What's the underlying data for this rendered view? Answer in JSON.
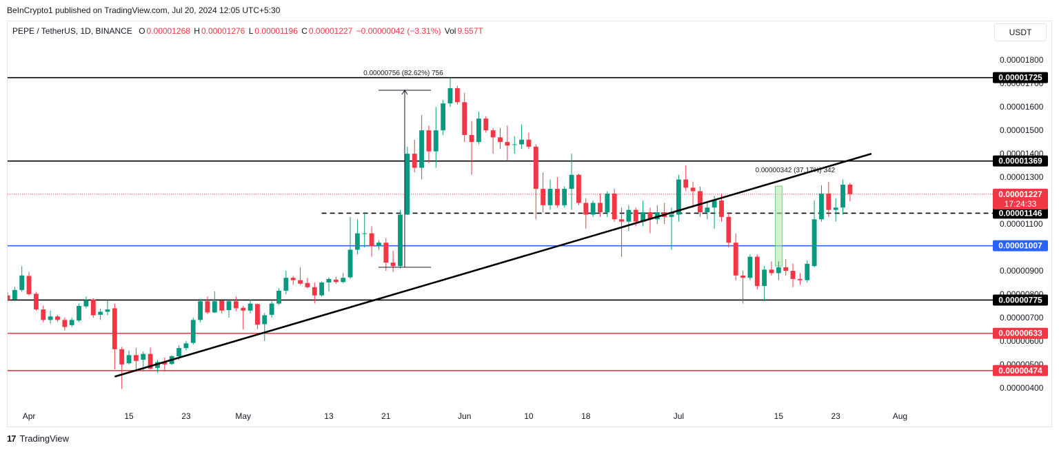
{
  "header": {
    "publisher": "BeInCrypto1 published on TradingView.com, Jul 20, 2024 12:05 UTC+5:30"
  },
  "legend": {
    "symbol": "PEPE / TetherUS, 1D, BINANCE",
    "open_label": "O",
    "open": "0.00001268",
    "high_label": "H",
    "high": "0.00001276",
    "low_label": "L",
    "low": "0.00001196",
    "close_label": "C",
    "close": "0.00001227",
    "change": "−0.00000042 (−3.31%)",
    "vol_label": "Vol",
    "vol": "9.557T"
  },
  "currency_button": "USDT",
  "footer": {
    "brand": "TradingView",
    "logo": "17"
  },
  "colors": {
    "up": "#089981",
    "down": "#f23645",
    "support_blue": "#2962ff",
    "support_red": "#f23645",
    "level_black": "#000000"
  },
  "chart_data": {
    "type": "candlestick",
    "symbol": "PEPE/USDT",
    "timeframe": "1D",
    "y_ticks": [
      "0.00001800",
      "0.00001700",
      "0.00001600",
      "0.00001500",
      "0.00001400",
      "0.00001300",
      "0.00001200",
      "0.00001100",
      "0.00001000",
      "0.00000900",
      "0.00000800",
      "0.00000700",
      "0.00000600",
      "0.00000500",
      "0.00000400"
    ],
    "x_ticks": [
      {
        "label": "Apr",
        "date": "2024-04-01"
      },
      {
        "label": "15",
        "date": "2024-04-15"
      },
      {
        "label": "23",
        "date": "2024-04-23"
      },
      {
        "label": "May",
        "date": "2024-05-01"
      },
      {
        "label": "13",
        "date": "2024-05-13"
      },
      {
        "label": "21",
        "date": "2024-05-21"
      },
      {
        "label": "Jun",
        "date": "2024-06-01"
      },
      {
        "label": "10",
        "date": "2024-06-10"
      },
      {
        "label": "18",
        "date": "2024-06-18"
      },
      {
        "label": "Jul",
        "date": "2024-07-01"
      },
      {
        "label": "15",
        "date": "2024-07-15"
      },
      {
        "label": "23",
        "date": "2024-07-23"
      },
      {
        "label": "Aug",
        "date": "2024-08-01"
      }
    ],
    "y_range": [
      3.35e-06,
      1.88e-05
    ],
    "x_range": [
      "2024-03-29",
      "2024-08-14"
    ],
    "levels": [
      {
        "value": 1.725e-05,
        "label": "0.00001725",
        "style": "solid",
        "color": "#000000"
      },
      {
        "value": 1.369e-05,
        "label": "0.00001369",
        "style": "solid",
        "color": "#000000"
      },
      {
        "value": 1.146e-05,
        "label": "0.00001146",
        "style": "dashed",
        "color": "#000000",
        "from": "2024-05-12"
      },
      {
        "value": 1.007e-05,
        "label": "0.00001007",
        "style": "solid",
        "color": "#2962ff"
      },
      {
        "value": 7.75e-06,
        "label": "0.00000775",
        "style": "solid",
        "color": "#000000"
      },
      {
        "value": 6.33e-06,
        "label": "0.00000633",
        "style": "solid",
        "color": "#f23645"
      },
      {
        "value": 4.74e-06,
        "label": "0.00000474",
        "style": "solid",
        "color": "#f23645"
      }
    ],
    "current_price": {
      "value": 1.227e-05,
      "label": "0.00001227",
      "countdown": "17:24:33"
    },
    "trendline": {
      "from": {
        "date": "2024-04-13",
        "value": 4.48e-06
      },
      "to": {
        "date": "2024-07-28",
        "value": 1.4e-05
      }
    },
    "measures": [
      {
        "label": "0.00000756 (82.62%) 756",
        "from": {
          "date": "2024-05-20",
          "value": 9.15e-06
        },
        "to": {
          "date": "2024-05-23",
          "value": 1.671e-05
        },
        "shaded": false
      },
      {
        "label": "0.00000342 (37.17%) 342",
        "from": {
          "date": "2024-07-15",
          "value": 9.2e-06
        },
        "to": {
          "date": "2024-07-15",
          "value": 1.262e-05
        },
        "shaded": true
      }
    ],
    "candles": [
      {
        "d": "2024-03-29",
        "o": 7.95e-06,
        "h": 8.1e-06,
        "l": 7.7e-06,
        "c": 7.75e-06
      },
      {
        "d": "2024-03-30",
        "o": 7.78e-06,
        "h": 8.32e-06,
        "l": 7.7e-06,
        "c": 8.18e-06
      },
      {
        "d": "2024-03-31",
        "o": 8.18e-06,
        "h": 9.2e-06,
        "l": 8.1e-06,
        "c": 8.8e-06
      },
      {
        "d": "2024-04-01",
        "o": 8.78e-06,
        "h": 8.95e-06,
        "l": 7.95e-06,
        "c": 8e-06
      },
      {
        "d": "2024-04-02",
        "o": 8.02e-06,
        "h": 8.1e-06,
        "l": 7.3e-06,
        "c": 7.35e-06
      },
      {
        "d": "2024-04-03",
        "o": 7.35e-06,
        "h": 7.52e-06,
        "l": 6.8e-06,
        "c": 6.9e-06
      },
      {
        "d": "2024-04-04",
        "o": 6.9e-06,
        "h": 7.3e-06,
        "l": 6.75e-06,
        "c": 7.05e-06
      },
      {
        "d": "2024-04-05",
        "o": 7.05e-06,
        "h": 7.12e-06,
        "l": 6.82e-06,
        "c": 6.9e-06
      },
      {
        "d": "2024-04-06",
        "o": 6.9e-06,
        "h": 7e-06,
        "l": 6.45e-06,
        "c": 6.6e-06
      },
      {
        "d": "2024-04-07",
        "o": 6.68e-06,
        "h": 7e-06,
        "l": 6.6e-06,
        "c": 6.9e-06
      },
      {
        "d": "2024-04-08",
        "o": 6.88e-06,
        "h": 7.6e-06,
        "l": 6.82e-06,
        "c": 7.5e-06
      },
      {
        "d": "2024-04-09",
        "o": 7.48e-06,
        "h": 7.9e-06,
        "l": 7.4e-06,
        "c": 7.75e-06
      },
      {
        "d": "2024-04-10",
        "o": 7.78e-06,
        "h": 7.82e-06,
        "l": 7e-06,
        "c": 7.1e-06
      },
      {
        "d": "2024-04-11",
        "o": 7.12e-06,
        "h": 7.38e-06,
        "l": 6.9e-06,
        "c": 7.25e-06
      },
      {
        "d": "2024-04-12",
        "o": 7.25e-06,
        "h": 7.75e-06,
        "l": 7.1e-06,
        "c": 7.35e-06
      },
      {
        "d": "2024-04-13",
        "o": 7.4e-06,
        "h": 7.6e-06,
        "l": 4.8e-06,
        "c": 5.65e-06
      },
      {
        "d": "2024-04-14",
        "o": 5.65e-06,
        "h": 5.75e-06,
        "l": 3.95e-06,
        "c": 5e-06
      },
      {
        "d": "2024-04-15",
        "o": 5.05e-06,
        "h": 5.6e-06,
        "l": 5e-06,
        "c": 5.4e-06
      },
      {
        "d": "2024-04-16",
        "o": 5.4e-06,
        "h": 5.7e-06,
        "l": 4.68e-06,
        "c": 5.15e-06
      },
      {
        "d": "2024-04-17",
        "o": 5.2e-06,
        "h": 5.55e-06,
        "l": 4.7e-06,
        "c": 5.45e-06
      },
      {
        "d": "2024-04-18",
        "o": 5.45e-06,
        "h": 5.72e-06,
        "l": 4.78e-06,
        "c": 4.82e-06
      },
      {
        "d": "2024-04-19",
        "o": 4.85e-06,
        "h": 5.2e-06,
        "l": 4.65e-06,
        "c": 5.1e-06
      },
      {
        "d": "2024-04-20",
        "o": 5.12e-06,
        "h": 5.3e-06,
        "l": 4.7e-06,
        "c": 5e-06
      },
      {
        "d": "2024-04-21",
        "o": 5.02e-06,
        "h": 5.4e-06,
        "l": 4.98e-06,
        "c": 5.35e-06
      },
      {
        "d": "2024-04-22",
        "o": 5.35e-06,
        "h": 5.82e-06,
        "l": 5.2e-06,
        "c": 5.7e-06
      },
      {
        "d": "2024-04-23",
        "o": 5.7e-06,
        "h": 6e-06,
        "l": 5.6e-06,
        "c": 5.9e-06
      },
      {
        "d": "2024-04-24",
        "o": 5.92e-06,
        "h": 7e-06,
        "l": 5.85e-06,
        "c": 6.9e-06
      },
      {
        "d": "2024-04-25",
        "o": 6.9e-06,
        "h": 7.8e-06,
        "l": 6.8e-06,
        "c": 7.7e-06
      },
      {
        "d": "2024-04-26",
        "o": 7.7e-06,
        "h": 7.9e-06,
        "l": 7.15e-06,
        "c": 7.22e-06
      },
      {
        "d": "2024-04-27",
        "o": 7.22e-06,
        "h": 8.12e-06,
        "l": 7.2e-06,
        "c": 7.7e-06
      },
      {
        "d": "2024-04-28",
        "o": 7.72e-06,
        "h": 7.8e-06,
        "l": 7.18e-06,
        "c": 7.3e-06
      },
      {
        "d": "2024-04-29",
        "o": 7.32e-06,
        "h": 7.75e-06,
        "l": 7e-06,
        "c": 7.7e-06
      },
      {
        "d": "2024-04-30",
        "o": 7.7e-06,
        "h": 7.9e-06,
        "l": 7.28e-06,
        "c": 7.4e-06
      },
      {
        "d": "2024-05-01",
        "o": 7.42e-06,
        "h": 7.5e-06,
        "l": 6.5e-06,
        "c": 7.3e-06
      },
      {
        "d": "2024-05-02",
        "o": 7.3e-06,
        "h": 7.78e-06,
        "l": 7.18e-06,
        "c": 7.6e-06
      },
      {
        "d": "2024-05-03",
        "o": 7.58e-06,
        "h": 7.6e-06,
        "l": 6.5e-06,
        "c": 6.7e-06
      },
      {
        "d": "2024-05-04",
        "o": 6.72e-06,
        "h": 7.2e-06,
        "l": 6e-06,
        "c": 7.1e-06
      },
      {
        "d": "2024-05-05",
        "o": 7.12e-06,
        "h": 7.7e-06,
        "l": 7e-06,
        "c": 7.6e-06
      },
      {
        "d": "2024-05-06",
        "o": 7.6e-06,
        "h": 8.25e-06,
        "l": 7.55e-06,
        "c": 8.15e-06
      },
      {
        "d": "2024-05-07",
        "o": 8.15e-06,
        "h": 9e-06,
        "l": 8e-06,
        "c": 8.7e-06
      },
      {
        "d": "2024-05-08",
        "o": 8.7e-06,
        "h": 8.78e-06,
        "l": 8.4e-06,
        "c": 8.6e-06
      },
      {
        "d": "2024-05-09",
        "o": 8.6e-06,
        "h": 9.15e-06,
        "l": 8.4e-06,
        "c": 8.45e-06
      },
      {
        "d": "2024-05-10",
        "o": 8.48e-06,
        "h": 8.7e-06,
        "l": 8.25e-06,
        "c": 8.3e-06
      },
      {
        "d": "2024-05-11",
        "o": 8.3e-06,
        "h": 8.5e-06,
        "l": 7.6e-06,
        "c": 7.95e-06
      },
      {
        "d": "2024-05-12",
        "o": 7.95e-06,
        "h": 8.55e-06,
        "l": 7.9e-06,
        "c": 8.5e-06
      },
      {
        "d": "2024-05-13",
        "o": 8.5e-06,
        "h": 8.72e-06,
        "l": 8.12e-06,
        "c": 8.65e-06
      },
      {
        "d": "2024-05-14",
        "o": 8.62e-06,
        "h": 8.75e-06,
        "l": 8.45e-06,
        "c": 8.52e-06
      },
      {
        "d": "2024-05-15",
        "o": 8.52e-06,
        "h": 8.9e-06,
        "l": 8.48e-06,
        "c": 8.7e-06
      },
      {
        "d": "2024-05-16",
        "o": 8.72e-06,
        "h": 1.13e-05,
        "l": 8.65e-06,
        "c": 9.9e-06
      },
      {
        "d": "2024-05-17",
        "o": 9.9e-06,
        "h": 1.12e-05,
        "l": 9.7e-06,
        "c": 1.06e-05
      },
      {
        "d": "2024-05-18",
        "o": 1.06e-05,
        "h": 1.15e-05,
        "l": 1e-05,
        "c": 1.06e-05
      },
      {
        "d": "2024-05-19",
        "o": 1.06e-05,
        "h": 1.09e-05,
        "l": 9.6e-06,
        "c": 1.005e-05
      },
      {
        "d": "2024-05-20",
        "o": 1.005e-05,
        "h": 1.03e-05,
        "l": 9.9e-06,
        "c": 1.02e-05
      },
      {
        "d": "2024-05-21",
        "o": 1.02e-05,
        "h": 1.04e-05,
        "l": 9e-06,
        "c": 9.35e-06
      },
      {
        "d": "2024-05-22",
        "o": 9.35e-06,
        "h": 9.85e-06,
        "l": 8.95e-06,
        "c": 9.2e-06
      },
      {
        "d": "2024-05-23",
        "o": 9.2e-06,
        "h": 1.16e-05,
        "l": 9.1e-06,
        "c": 1.14e-05
      },
      {
        "d": "2024-05-24",
        "o": 1.14e-05,
        "h": 1.43e-05,
        "l": 1.138e-05,
        "c": 1.4e-05
      },
      {
        "d": "2024-05-25",
        "o": 1.4e-05,
        "h": 1.46e-05,
        "l": 1.32e-05,
        "c": 1.34e-05
      },
      {
        "d": "2024-05-26",
        "o": 1.34e-05,
        "h": 1.565e-05,
        "l": 1.29e-05,
        "c": 1.5e-05
      },
      {
        "d": "2024-05-27",
        "o": 1.5e-05,
        "h": 1.52e-05,
        "l": 1.36e-05,
        "c": 1.41e-05
      },
      {
        "d": "2024-05-28",
        "o": 1.41e-05,
        "h": 1.6e-05,
        "l": 1.34e-05,
        "c": 1.5e-05
      },
      {
        "d": "2024-05-29",
        "o": 1.5e-05,
        "h": 1.63e-05,
        "l": 1.48e-05,
        "c": 1.615e-05
      },
      {
        "d": "2024-05-30",
        "o": 1.615e-05,
        "h": 1.725e-05,
        "l": 1.6e-05,
        "c": 1.68e-05
      },
      {
        "d": "2024-05-31",
        "o": 1.68e-05,
        "h": 1.69e-05,
        "l": 1.61e-05,
        "c": 1.62e-05
      },
      {
        "d": "2024-06-01",
        "o": 1.62e-05,
        "h": 1.66e-05,
        "l": 1.45e-05,
        "c": 1.48e-05
      },
      {
        "d": "2024-06-02",
        "o": 1.48e-05,
        "h": 1.54e-05,
        "l": 1.31e-05,
        "c": 1.45e-05
      },
      {
        "d": "2024-06-03",
        "o": 1.45e-05,
        "h": 1.58e-05,
        "l": 1.44e-05,
        "c": 1.55e-05
      },
      {
        "d": "2024-06-04",
        "o": 1.55e-05,
        "h": 1.56e-05,
        "l": 1.49e-05,
        "c": 1.5e-05
      },
      {
        "d": "2024-06-05",
        "o": 1.5e-05,
        "h": 1.51e-05,
        "l": 1.4e-05,
        "c": 1.47e-05
      },
      {
        "d": "2024-06-06",
        "o": 1.47e-05,
        "h": 1.51e-05,
        "l": 1.42e-05,
        "c": 1.45e-05
      },
      {
        "d": "2024-06-07",
        "o": 1.45e-05,
        "h": 1.52e-05,
        "l": 1.37e-05,
        "c": 1.435e-05
      },
      {
        "d": "2024-06-08",
        "o": 1.438e-05,
        "h": 1.475e-05,
        "l": 1.4e-05,
        "c": 1.44e-05
      },
      {
        "d": "2024-06-09",
        "o": 1.44e-05,
        "h": 1.525e-05,
        "l": 1.42e-05,
        "c": 1.46e-05
      },
      {
        "d": "2024-06-10",
        "o": 1.46e-05,
        "h": 1.49e-05,
        "l": 1.42e-05,
        "c": 1.43e-05
      },
      {
        "d": "2024-06-11",
        "o": 1.43e-05,
        "h": 1.44e-05,
        "l": 1.12e-05,
        "c": 1.25e-05
      },
      {
        "d": "2024-06-12",
        "o": 1.25e-05,
        "h": 1.32e-05,
        "l": 1.15e-05,
        "c": 1.18e-05
      },
      {
        "d": "2024-06-13",
        "o": 1.18e-05,
        "h": 1.29e-05,
        "l": 1.16e-05,
        "c": 1.25e-05
      },
      {
        "d": "2024-06-14",
        "o": 1.25e-05,
        "h": 1.3e-05,
        "l": 1.17e-05,
        "c": 1.18e-05
      },
      {
        "d": "2024-06-15",
        "o": 1.18e-05,
        "h": 1.26e-05,
        "l": 1.17e-05,
        "c": 1.25e-05
      },
      {
        "d": "2024-06-16",
        "o": 1.25e-05,
        "h": 1.4e-05,
        "l": 1.16e-05,
        "c": 1.31e-05
      },
      {
        "d": "2024-06-17",
        "o": 1.31e-05,
        "h": 1.315e-05,
        "l": 1.18e-05,
        "c": 1.19e-05
      },
      {
        "d": "2024-06-18",
        "o": 1.19e-05,
        "h": 1.21e-05,
        "l": 1.08e-05,
        "c": 1.14e-05
      },
      {
        "d": "2024-06-19",
        "o": 1.14e-05,
        "h": 1.2e-05,
        "l": 1.13e-05,
        "c": 1.19e-05
      },
      {
        "d": "2024-06-20",
        "o": 1.19e-05,
        "h": 1.23e-05,
        "l": 1.13e-05,
        "c": 1.15e-05
      },
      {
        "d": "2024-06-21",
        "o": 1.15e-05,
        "h": 1.24e-05,
        "l": 1.13e-05,
        "c": 1.23e-05
      },
      {
        "d": "2024-06-22",
        "o": 1.23e-05,
        "h": 1.25e-05,
        "l": 1.11e-05,
        "c": 1.12e-05
      },
      {
        "d": "2024-06-23",
        "o": 1.12e-05,
        "h": 1.17e-05,
        "l": 9.6e-06,
        "c": 1.11e-05
      },
      {
        "d": "2024-06-24",
        "o": 1.11e-05,
        "h": 1.18e-05,
        "l": 1.07e-05,
        "c": 1.16e-05
      },
      {
        "d": "2024-06-25",
        "o": 1.16e-05,
        "h": 1.17e-05,
        "l": 1.09e-05,
        "c": 1.11e-05
      },
      {
        "d": "2024-06-26",
        "o": 1.11e-05,
        "h": 1.2e-05,
        "l": 1.09e-05,
        "c": 1.15e-05
      },
      {
        "d": "2024-06-27",
        "o": 1.15e-05,
        "h": 1.17e-05,
        "l": 1.06e-05,
        "c": 1.12e-05
      },
      {
        "d": "2024-06-28",
        "o": 1.12e-05,
        "h": 1.18e-05,
        "l": 1.1e-05,
        "c": 1.15e-05
      },
      {
        "d": "2024-06-29",
        "o": 1.15e-05,
        "h": 1.19e-05,
        "l": 1.1e-05,
        "c": 1.13e-05
      },
      {
        "d": "2024-06-30",
        "o": 1.13e-05,
        "h": 1.17e-05,
        "l": 9.9e-06,
        "c": 1.14e-05
      },
      {
        "d": "2024-07-01",
        "o": 1.14e-05,
        "h": 1.31e-05,
        "l": 1.11e-05,
        "c": 1.29e-05
      },
      {
        "d": "2024-07-02",
        "o": 1.29e-05,
        "h": 1.35e-05,
        "l": 1.24e-05,
        "c": 1.255e-05
      },
      {
        "d": "2024-07-03",
        "o": 1.255e-05,
        "h": 1.28e-05,
        "l": 1.17e-05,
        "c": 1.24e-05
      },
      {
        "d": "2024-07-04",
        "o": 1.24e-05,
        "h": 1.26e-05,
        "l": 1.13e-05,
        "c": 1.15e-05
      },
      {
        "d": "2024-07-05",
        "o": 1.15e-05,
        "h": 1.19e-05,
        "l": 1.12e-05,
        "c": 1.17e-05
      },
      {
        "d": "2024-07-06",
        "o": 1.17e-05,
        "h": 1.22e-05,
        "l": 1.08e-05,
        "c": 1.2e-05
      },
      {
        "d": "2024-07-07",
        "o": 1.2e-05,
        "h": 1.23e-05,
        "l": 1.11e-05,
        "c": 1.13e-05
      },
      {
        "d": "2024-07-08",
        "o": 1.13e-05,
        "h": 1.15e-05,
        "l": 1e-05,
        "c": 1.02e-05
      },
      {
        "d": "2024-07-09",
        "o": 1.02e-05,
        "h": 1.06e-05,
        "l": 8.6e-06,
        "c": 8.8e-06
      },
      {
        "d": "2024-07-10",
        "o": 8.8e-06,
        "h": 9e-06,
        "l": 7.6e-06,
        "c": 8.7e-06
      },
      {
        "d": "2024-07-11",
        "o": 8.7e-06,
        "h": 9.7e-06,
        "l": 8.6e-06,
        "c": 9.6e-06
      },
      {
        "d": "2024-07-12",
        "o": 9.6e-06,
        "h": 9.7e-06,
        "l": 8.2e-06,
        "c": 8.35e-06
      },
      {
        "d": "2024-07-13",
        "o": 8.35e-06,
        "h": 9.2e-06,
        "l": 7.7e-06,
        "c": 9.05e-06
      },
      {
        "d": "2024-07-14",
        "o": 9.05e-06,
        "h": 9.4e-06,
        "l": 8.8e-06,
        "c": 8.9e-06
      },
      {
        "d": "2024-07-15",
        "o": 8.9e-06,
        "h": 9.4e-06,
        "l": 8.6e-06,
        "c": 9.15e-06
      },
      {
        "d": "2024-07-16",
        "o": 9.15e-06,
        "h": 9.5e-06,
        "l": 8.8e-06,
        "c": 9e-06
      },
      {
        "d": "2024-07-17",
        "o": 9e-06,
        "h": 9.3e-06,
        "l": 8.3e-06,
        "c": 8.65e-06
      },
      {
        "d": "2024-07-18",
        "o": 8.65e-06,
        "h": 8.9e-06,
        "l": 8.4e-06,
        "c": 8.6e-06
      },
      {
        "d": "2024-07-19",
        "o": 8.6e-06,
        "h": 9.45e-06,
        "l": 8.5e-06,
        "c": 9.3e-06
      },
      {
        "d": "2024-07-20",
        "o": 9.2e-06,
        "h": 1.2e-05,
        "l": 9.15e-06,
        "c": 1.12e-05
      },
      {
        "d": "2024-07-21",
        "o": 1.12e-05,
        "h": 1.265e-05,
        "l": 1.11e-05,
        "c": 1.23e-05
      },
      {
        "d": "2024-07-22",
        "o": 1.23e-05,
        "h": 1.28e-05,
        "l": 1.13e-05,
        "c": 1.16e-05
      },
      {
        "d": "2024-07-23",
        "o": 1.16e-05,
        "h": 1.21e-05,
        "l": 1.11e-05,
        "c": 1.17e-05
      },
      {
        "d": "2024-07-24",
        "o": 1.17e-05,
        "h": 1.29e-05,
        "l": 1.14e-05,
        "c": 1.268e-05
      },
      {
        "d": "2024-07-25",
        "o": 1.268e-05,
        "h": 1.276e-05,
        "l": 1.196e-05,
        "c": 1.227e-05
      }
    ]
  }
}
